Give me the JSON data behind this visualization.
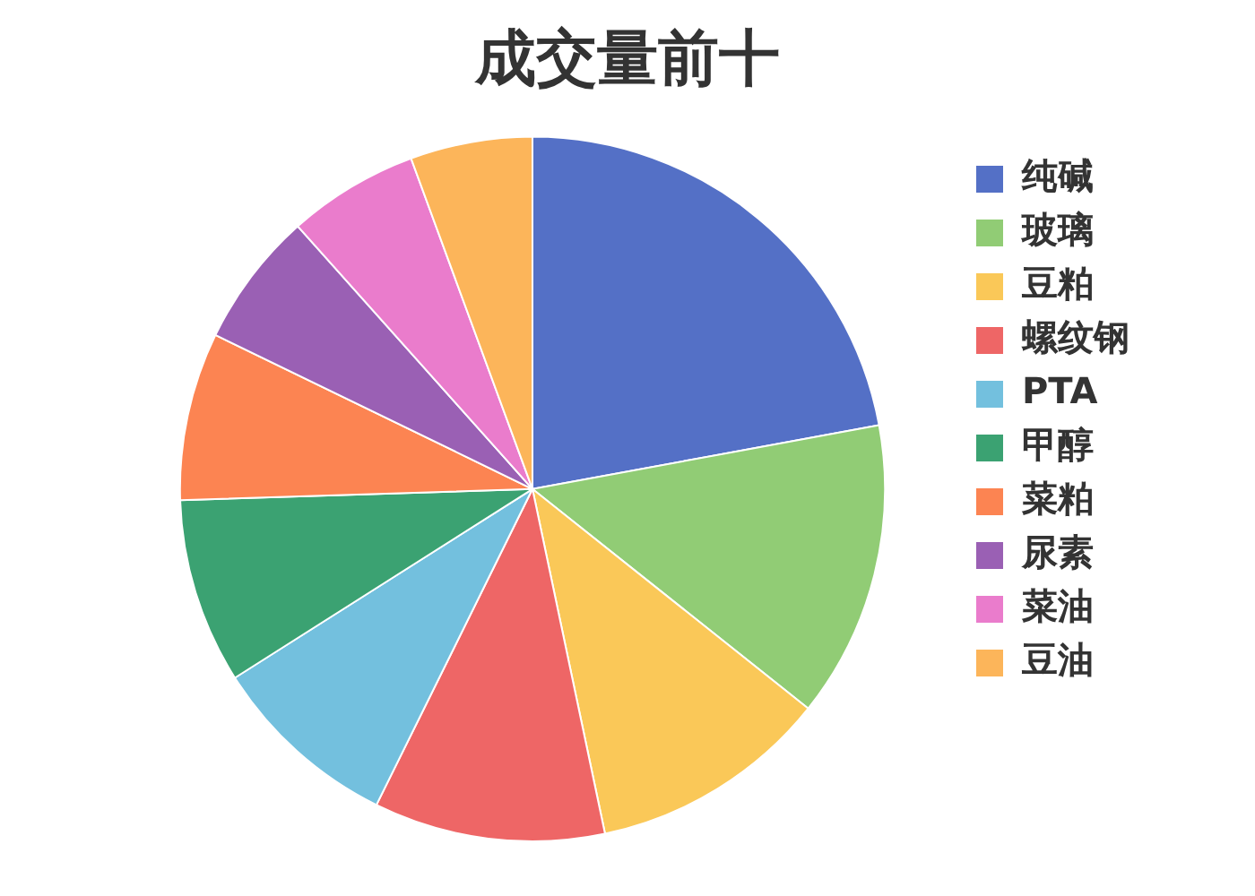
{
  "chart_data": {
    "type": "pie",
    "title": "成交量前十",
    "categories": [
      "纯碱",
      "玻璃",
      "豆粕",
      "螺纹钢",
      "PTA",
      "甲醇",
      "菜粕",
      "尿素",
      "菜油",
      "豆油"
    ],
    "values": [
      22.1,
      13.6,
      11.0,
      10.6,
      8.7,
      8.5,
      7.7,
      6.2,
      6.0,
      5.6
    ],
    "colors": [
      "#5470c6",
      "#91cc75",
      "#fac858",
      "#ee6666",
      "#73c0de",
      "#3ba272",
      "#fc8452",
      "#9a60b4",
      "#ea7ccc",
      "#fcb55a"
    ],
    "legend": "right"
  }
}
